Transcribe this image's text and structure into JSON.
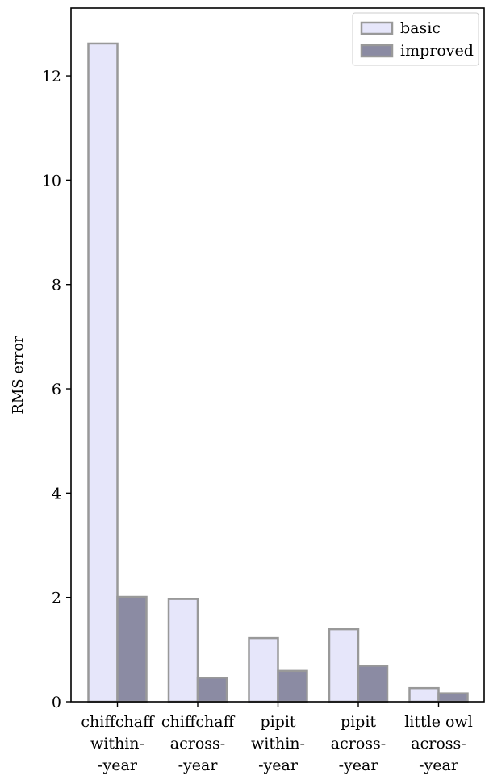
{
  "chart_data": {
    "type": "bar",
    "title": "",
    "xlabel": "",
    "ylabel": "RMS error",
    "ylim": [
      0,
      13.3
    ],
    "yticks": [
      0,
      2,
      4,
      6,
      8,
      10,
      12
    ],
    "grid": false,
    "legend_position": "top-right",
    "categories": [
      [
        "chiffchaff",
        "within-",
        "-year"
      ],
      [
        "chiffchaff",
        "across-",
        "-year"
      ],
      [
        "pipit",
        "within-",
        "-year"
      ],
      [
        "pipit",
        "across-",
        "-year"
      ],
      [
        "little owl",
        "across-",
        "-year"
      ]
    ],
    "series": [
      {
        "name": "basic",
        "values": [
          12.62,
          1.97,
          1.22,
          1.39,
          0.26
        ],
        "color": "#e6e6fa"
      },
      {
        "name": "improved",
        "values": [
          2.01,
          0.46,
          0.59,
          0.69,
          0.16
        ],
        "color": "#8b8ba3"
      }
    ],
    "edge_color": "#999999"
  }
}
